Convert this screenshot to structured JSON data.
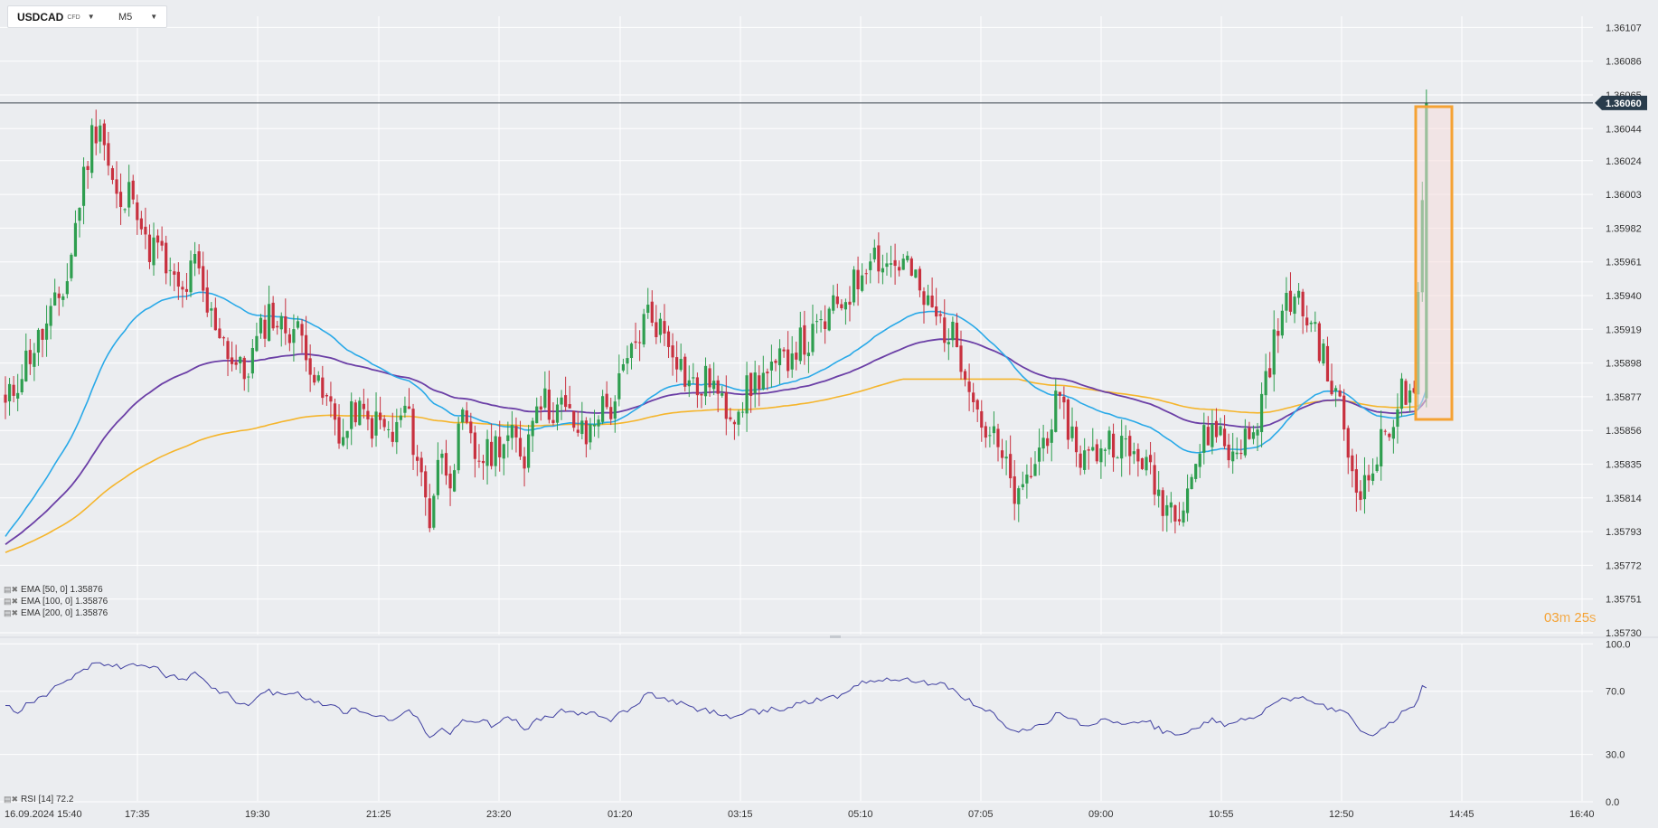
{
  "toolbar": {
    "symbol": "USDCAD",
    "symbol_type": "CFD",
    "timeframe": "M5"
  },
  "price_axis": {
    "ticks": [
      "1.36107",
      "1.36086",
      "1.36065",
      "1.36044",
      "1.36024",
      "1.36003",
      "1.35982",
      "1.35961",
      "1.35940",
      "1.35919",
      "1.35898",
      "1.35877",
      "1.35856",
      "1.35835",
      "1.35814",
      "1.35793",
      "1.35772",
      "1.35751",
      "1.35730"
    ],
    "current_price_label": "1.36060",
    "current_price": 1.3606
  },
  "rsi_axis": {
    "ticks": [
      "100.0",
      "70.0",
      "30.0",
      "0.0"
    ]
  },
  "time_axis": {
    "labels": [
      "16.09.2024  15:40",
      "17:35",
      "19:30",
      "21:25",
      "23:20",
      "01:20",
      "03:15",
      "05:10",
      "07:05",
      "09:00",
      "10:55",
      "12:50",
      "14:45",
      "16:40"
    ]
  },
  "legends": {
    "ema50": "EMA  [50,  0]  1.35876",
    "ema100": "EMA  [100,  0]  1.35876",
    "ema200": "EMA  [200,  0]  1.35876",
    "rsi": "RSI  [14]  72.2"
  },
  "timer": {
    "minutes": "03",
    "m": "m",
    "seconds": "25",
    "s": "s"
  },
  "colors": {
    "up": "#2e9e4f",
    "down": "#c8313f",
    "ema50": "#29a9e8",
    "ema100": "#6b3fa6",
    "ema200": "#f5b52c",
    "rsi": "#3f3fa0",
    "highlight_border": "#f5a233",
    "highlight_fill": "#f6dcdc",
    "price_tag": "#293c4c",
    "grid": "#ffffff",
    "background": "#ebedf0"
  },
  "chart_data": {
    "type": "candlestick",
    "instrument": "USDCAD",
    "timeframe": "M5",
    "ylim": [
      1.3573,
      1.3611
    ],
    "rsi_ylim": [
      0,
      100
    ],
    "close_path": [
      [
        0,
        1.3587
      ],
      [
        5,
        1.359
      ],
      [
        10,
        1.3592
      ],
      [
        15,
        1.3595
      ],
      [
        18,
        1.36
      ],
      [
        21,
        1.3604
      ],
      [
        23,
        1.3605
      ],
      [
        25,
        1.3602
      ],
      [
        28,
        1.3599
      ],
      [
        31,
        1.3601
      ],
      [
        34,
        1.3597
      ],
      [
        37,
        1.3597
      ],
      [
        40,
        1.3595
      ],
      [
        43,
        1.3594
      ],
      [
        46,
        1.3596
      ],
      [
        49,
        1.3593
      ],
      [
        52,
        1.3592
      ],
      [
        55,
        1.359
      ],
      [
        58,
        1.3589
      ],
      [
        61,
        1.3591
      ],
      [
        64,
        1.3593
      ],
      [
        67,
        1.3592
      ],
      [
        70,
        1.3592
      ],
      [
        73,
        1.3591
      ],
      [
        76,
        1.3588
      ],
      [
        79,
        1.3587
      ],
      [
        82,
        1.3585
      ],
      [
        85,
        1.3587
      ],
      [
        88,
        1.3586
      ],
      [
        91,
        1.3586
      ],
      [
        94,
        1.3585
      ],
      [
        97,
        1.3587
      ],
      [
        100,
        1.3584
      ],
      [
        103,
        1.358
      ],
      [
        105,
        1.3584
      ],
      [
        108,
        1.3583
      ],
      [
        111,
        1.3586
      ],
      [
        114,
        1.3584
      ],
      [
        117,
        1.3584
      ],
      [
        120,
        1.3585
      ],
      [
        123,
        1.3585
      ],
      [
        126,
        1.3584
      ],
      [
        129,
        1.3588
      ],
      [
        132,
        1.3587
      ],
      [
        135,
        1.3587
      ],
      [
        138,
        1.3586
      ],
      [
        141,
        1.3585
      ],
      [
        144,
        1.3587
      ],
      [
        147,
        1.3587
      ],
      [
        150,
        1.3589
      ],
      [
        153,
        1.3591
      ],
      [
        156,
        1.3593
      ],
      [
        159,
        1.3592
      ],
      [
        162,
        1.3591
      ],
      [
        165,
        1.3589
      ],
      [
        168,
        1.3588
      ],
      [
        171,
        1.3589
      ],
      [
        174,
        1.3587
      ],
      [
        177,
        1.3587
      ],
      [
        180,
        1.3588
      ],
      [
        183,
        1.3589
      ],
      [
        186,
        1.3589
      ],
      [
        189,
        1.359
      ],
      [
        192,
        1.3591
      ],
      [
        195,
        1.3591
      ],
      [
        198,
        1.3592
      ],
      [
        201,
        1.3593
      ],
      [
        204,
        1.3594
      ],
      [
        207,
        1.3595
      ],
      [
        210,
        1.3597
      ],
      [
        213,
        1.3596
      ],
      [
        216,
        1.3596
      ],
      [
        219,
        1.3596
      ],
      [
        222,
        1.3594
      ],
      [
        225,
        1.3593
      ],
      [
        228,
        1.3592
      ],
      [
        231,
        1.3591
      ],
      [
        234,
        1.3589
      ],
      [
        237,
        1.3586
      ],
      [
        240,
        1.3585
      ],
      [
        243,
        1.3583
      ],
      [
        246,
        1.3581
      ],
      [
        249,
        1.3583
      ],
      [
        252,
        1.3585
      ],
      [
        255,
        1.3587
      ],
      [
        258,
        1.3586
      ],
      [
        261,
        1.3584
      ],
      [
        264,
        1.3584
      ],
      [
        267,
        1.3585
      ],
      [
        270,
        1.3585
      ],
      [
        273,
        1.3584
      ],
      [
        276,
        1.3584
      ],
      [
        279,
        1.3582
      ],
      [
        282,
        1.3581
      ],
      [
        285,
        1.3581
      ],
      [
        288,
        1.3583
      ],
      [
        291,
        1.3585
      ],
      [
        294,
        1.3586
      ],
      [
        297,
        1.3584
      ],
      [
        300,
        1.3585
      ],
      [
        303,
        1.3585
      ],
      [
        306,
        1.3589
      ],
      [
        309,
        1.3592
      ],
      [
        312,
        1.3594
      ],
      [
        315,
        1.3593
      ],
      [
        318,
        1.3592
      ],
      [
        321,
        1.3589
      ],
      [
        324,
        1.3587
      ],
      [
        327,
        1.3583
      ],
      [
        330,
        1.3582
      ],
      [
        333,
        1.3584
      ],
      [
        336,
        1.3586
      ],
      [
        339,
        1.3588
      ],
      [
        342,
        1.3587
      ],
      [
        345,
        1.3606
      ]
    ]
  }
}
